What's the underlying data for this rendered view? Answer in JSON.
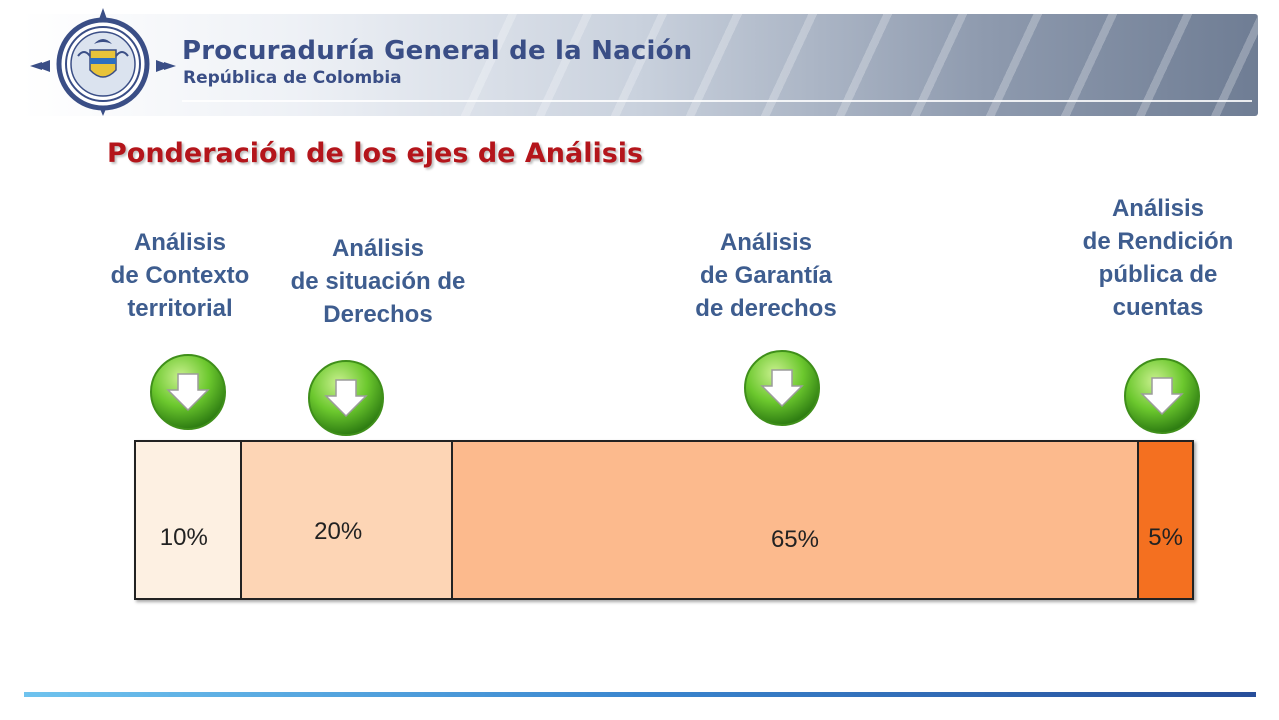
{
  "header": {
    "org_name": "Procuraduría General de la Nación",
    "org_subtitle": "República de Colombia"
  },
  "title": "Ponderación de los ejes de Análisis",
  "axes": [
    {
      "lines": [
        "Análisis",
        "de Contexto",
        "territorial"
      ],
      "percent_label": "10%",
      "value": 10,
      "color": "#fdf0e2"
    },
    {
      "lines": [
        "Análisis",
        "de situación de",
        "Derechos"
      ],
      "percent_label": "20%",
      "value": 20,
      "color": "#fdd5b5"
    },
    {
      "lines": [
        "Análisis",
        "de Garantía",
        "de derechos"
      ],
      "percent_label": "65%",
      "value": 65,
      "color": "#fcba8d"
    },
    {
      "lines": [
        "Análisis",
        "de Rendición",
        "pública de",
        "cuentas"
      ],
      "percent_label": "5%",
      "value": 5,
      "color": "#f47020"
    }
  ],
  "colors": {
    "title": "#b4151b",
    "labels": "#3e5d8f",
    "org_text": "#3a4e86",
    "button_green": "#6cc82e"
  },
  "icons": {
    "seal": "coat-of-arms-seal-icon",
    "button": "down-arrow-icon"
  }
}
